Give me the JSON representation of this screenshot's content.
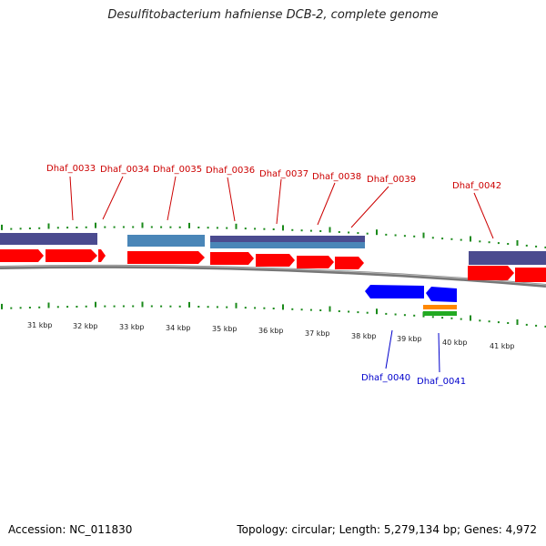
{
  "title": "Desulfitobacterium hafniense DCB-2, complete genome",
  "footer": {
    "accession": "Accession: NC_011830",
    "summary": "Topology: circular; Length: 5,279,134 bp; Genes: 4,972"
  },
  "colors": {
    "forward_label": "#cc0000",
    "reverse_label": "#0000cc",
    "cds_forward": "#ff0000",
    "cds_reverse": "#0000ff",
    "gene_forward": "#4b4b8f",
    "gene_alt": "#4a86b8",
    "tick": "#1a8a1a",
    "backbone": "#808080"
  },
  "kbp_labels": [
    "31 kbp",
    "32 kbp",
    "33 kbp",
    "34 kbp",
    "35 kbp",
    "36 kbp",
    "37 kbp",
    "38 kbp",
    "39 kbp",
    "40 kbp",
    "41 kbp"
  ],
  "forward_genes": [
    "Dhaf_0033",
    "Dhaf_0034",
    "Dhaf_0035",
    "Dhaf_0036",
    "Dhaf_0037",
    "Dhaf_0038",
    "Dhaf_0039",
    "Dhaf_0042"
  ],
  "reverse_genes": [
    "Dhaf_0040",
    "Dhaf_0041"
  ]
}
